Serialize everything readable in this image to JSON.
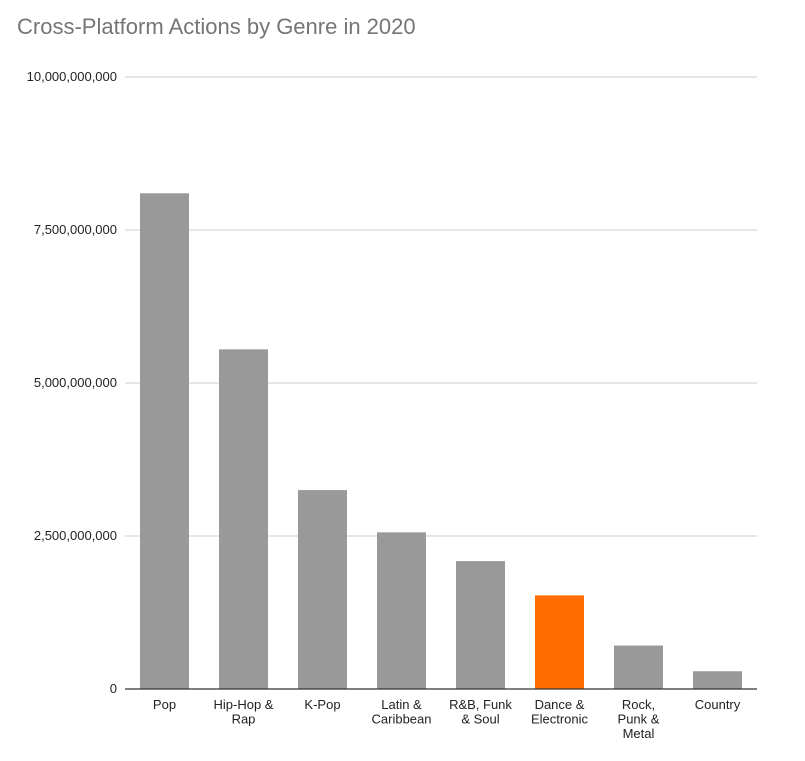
{
  "chart_data": {
    "type": "bar",
    "title": "Cross-Platform Actions by Genre in 2020",
    "xlabel": "",
    "ylabel": "",
    "ylim": [
      0,
      10000000000
    ],
    "yticks": [
      {
        "value": 0,
        "label": "0"
      },
      {
        "value": 2500000000,
        "label": "2,500,000,000"
      },
      {
        "value": 5000000000,
        "label": "5,000,000,000"
      },
      {
        "value": 7500000000,
        "label": "7,500,000,000"
      },
      {
        "value": 10000000000,
        "label": "10,000,000,000"
      }
    ],
    "categories": [
      [
        "Pop"
      ],
      [
        "Hip-Hop &",
        "Rap"
      ],
      [
        "K-Pop"
      ],
      [
        "Latin &",
        "Caribbean"
      ],
      [
        "R&B, Funk",
        "& Soul"
      ],
      [
        "Dance &",
        "Electronic"
      ],
      [
        "Rock,",
        "Punk &",
        "Metal"
      ],
      [
        "Country"
      ]
    ],
    "values": [
      8100000000,
      5550000000,
      3250000000,
      2560000000,
      2090000000,
      1530000000,
      710000000,
      290000000
    ],
    "grid": true,
    "legend": "none",
    "colors": {
      "default": "#999999",
      "highlight": "#ff6d01",
      "highlight_index": 5,
      "grid": "#cccccc",
      "axis": "#333333"
    }
  }
}
